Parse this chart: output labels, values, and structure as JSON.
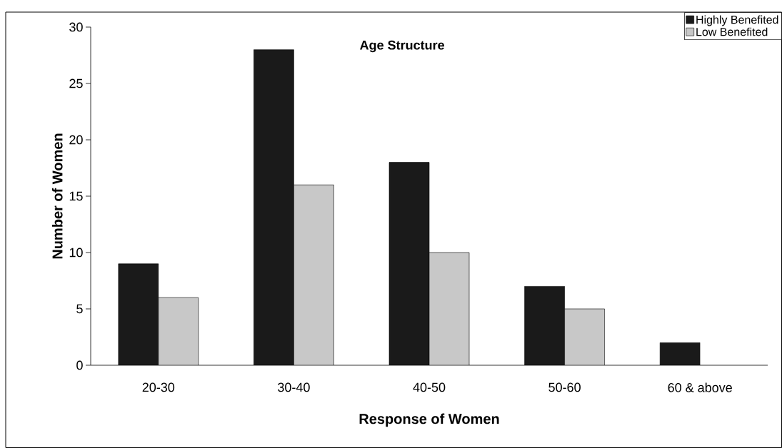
{
  "chart_data": {
    "type": "bar",
    "title": "Age Structure",
    "xlabel": "Response of Women",
    "ylabel": "Number of Women",
    "categories": [
      "20-30",
      "30-40",
      "40-50",
      "50-60",
      "60 & above"
    ],
    "series": [
      {
        "name": "Highly Benefited",
        "color": "#1a1a1a",
        "values": [
          9,
          28,
          18,
          7,
          2
        ]
      },
      {
        "name": "Low Benefited",
        "color": "#c8c8c8",
        "values": [
          6,
          16,
          10,
          5,
          null
        ]
      }
    ],
    "ylim": [
      0,
      30
    ],
    "yticks": [
      0,
      5,
      10,
      15,
      20,
      25,
      30
    ],
    "grid": false,
    "legend": "top right"
  }
}
